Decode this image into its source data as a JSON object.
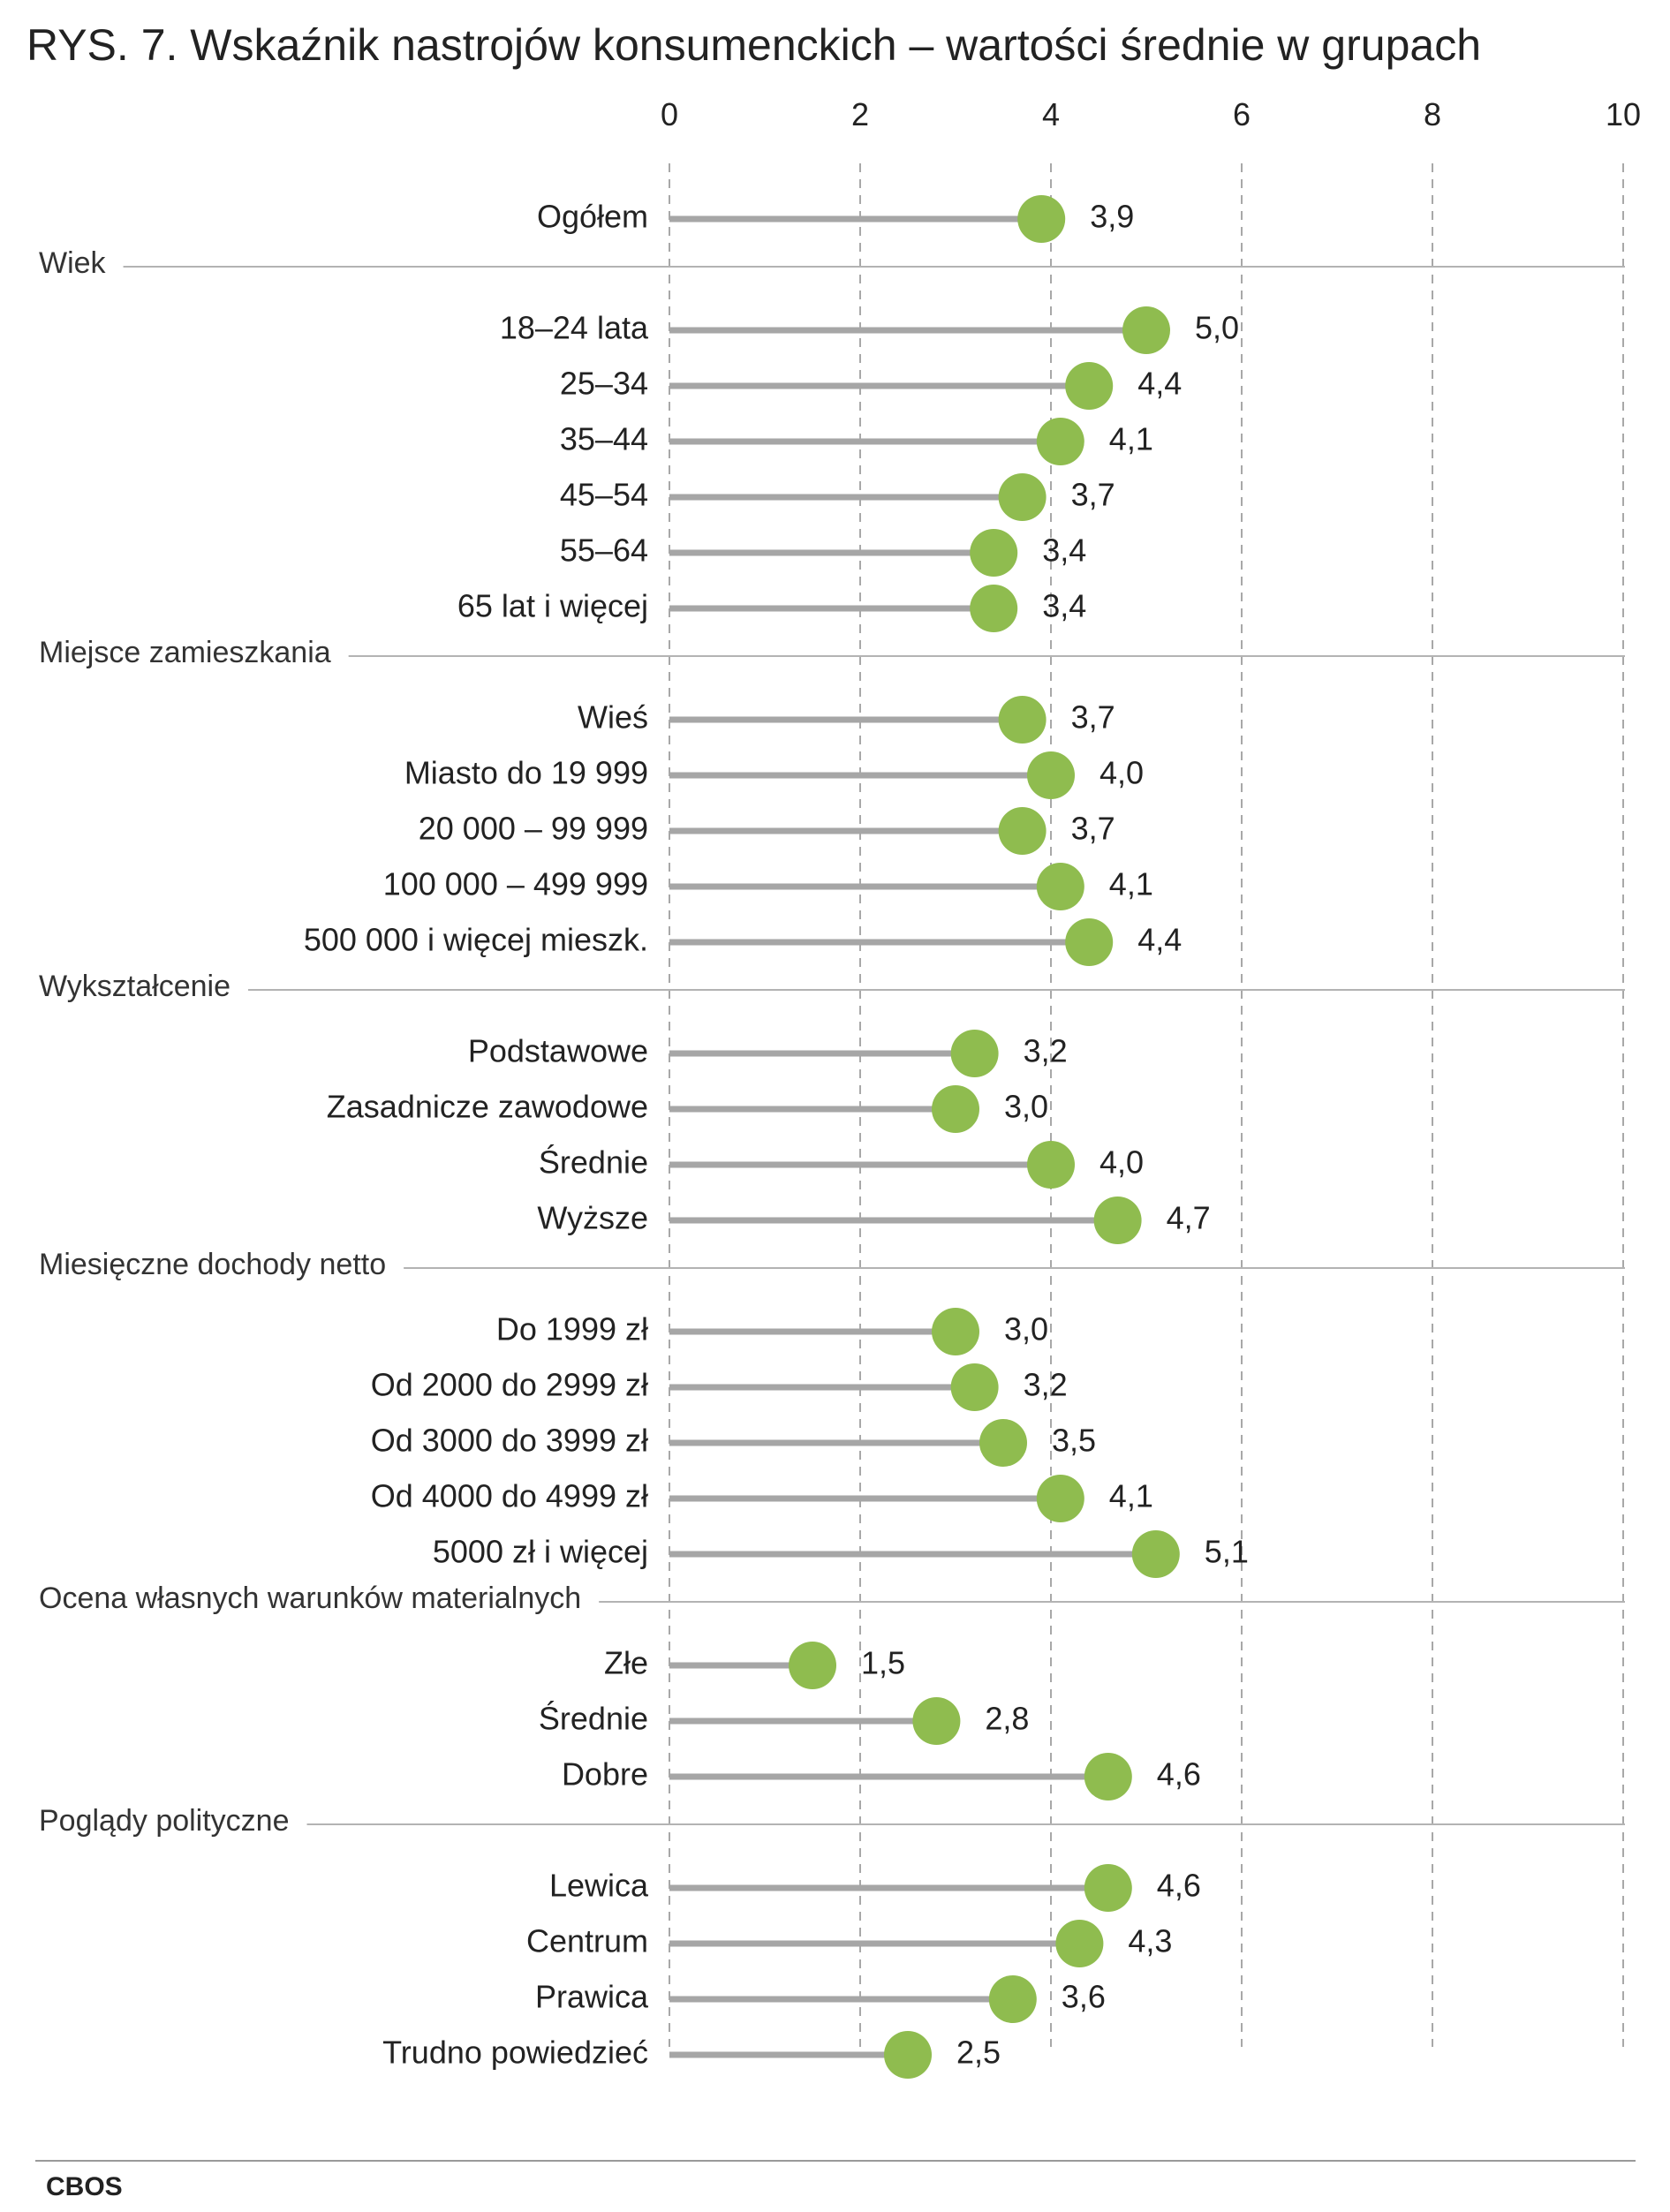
{
  "title": "RYS. 7. Wskaźnik nastrojów konsumenckich – wartości średnie w grupach",
  "source": "CBOS",
  "colors": {
    "marker": "#8fbc4f",
    "stem": "#a6a6a6",
    "grid": "#a8a8a8",
    "separator": "#b3b3b3"
  },
  "chart_data": {
    "type": "lollipop",
    "title": "RYS. 7. Wskaźnik nastrojów konsumenckich – wartości średnie w grupach",
    "xlim": [
      0,
      10
    ],
    "x_ticks": [
      "0",
      "2",
      "4",
      "6",
      "8",
      "10"
    ],
    "grid": "dashed vertical",
    "rows": [
      {
        "kind": "item",
        "label": "Ogółem",
        "value": 3.9,
        "display": "3,9"
      },
      {
        "kind": "group",
        "label": "Wiek"
      },
      {
        "kind": "item",
        "label": "18–24 lata",
        "value": 5.0,
        "display": "5,0"
      },
      {
        "kind": "item",
        "label": "25–34",
        "value": 4.4,
        "display": "4,4"
      },
      {
        "kind": "item",
        "label": "35–44",
        "value": 4.1,
        "display": "4,1"
      },
      {
        "kind": "item",
        "label": "45–54",
        "value": 3.7,
        "display": "3,7"
      },
      {
        "kind": "item",
        "label": "55–64",
        "value": 3.4,
        "display": "3,4"
      },
      {
        "kind": "item",
        "label": "65 lat i więcej",
        "value": 3.4,
        "display": "3,4"
      },
      {
        "kind": "group",
        "label": "Miejsce zamieszkania"
      },
      {
        "kind": "item",
        "label": "Wieś",
        "value": 3.7,
        "display": "3,7"
      },
      {
        "kind": "item",
        "label": "Miasto do 19 999",
        "value": 4.0,
        "display": "4,0"
      },
      {
        "kind": "item",
        "label": "20 000 – 99 999",
        "value": 3.7,
        "display": "3,7"
      },
      {
        "kind": "item",
        "label": "100 000 – 499 999",
        "value": 4.1,
        "display": "4,1"
      },
      {
        "kind": "item",
        "label": "500 000 i więcej mieszk.",
        "value": 4.4,
        "display": "4,4"
      },
      {
        "kind": "group",
        "label": "Wykształcenie"
      },
      {
        "kind": "item",
        "label": "Podstawowe",
        "value": 3.2,
        "display": "3,2"
      },
      {
        "kind": "item",
        "label": "Zasadnicze zawodowe",
        "value": 3.0,
        "display": "3,0"
      },
      {
        "kind": "item",
        "label": "Średnie",
        "value": 4.0,
        "display": "4,0"
      },
      {
        "kind": "item",
        "label": "Wyższe",
        "value": 4.7,
        "display": "4,7"
      },
      {
        "kind": "group",
        "label": "Miesięczne dochody netto"
      },
      {
        "kind": "item",
        "label": "Do 1999 zł",
        "value": 3.0,
        "display": "3,0"
      },
      {
        "kind": "item",
        "label": "Od 2000 do 2999 zł",
        "value": 3.2,
        "display": "3,2"
      },
      {
        "kind": "item",
        "label": "Od 3000 do 3999 zł",
        "value": 3.5,
        "display": "3,5"
      },
      {
        "kind": "item",
        "label": "Od 4000 do 4999 zł",
        "value": 4.1,
        "display": "4,1"
      },
      {
        "kind": "item",
        "label": "5000 zł i więcej",
        "value": 5.1,
        "display": "5,1"
      },
      {
        "kind": "group",
        "label": "Ocena własnych warunków materialnych"
      },
      {
        "kind": "item",
        "label": "Złe",
        "value": 1.5,
        "display": "1,5"
      },
      {
        "kind": "item",
        "label": "Średnie",
        "value": 2.8,
        "display": "2,8"
      },
      {
        "kind": "item",
        "label": "Dobre",
        "value": 4.6,
        "display": "4,6"
      },
      {
        "kind": "group",
        "label": "Poglądy polityczne"
      },
      {
        "kind": "item",
        "label": "Lewica",
        "value": 4.6,
        "display": "4,6"
      },
      {
        "kind": "item",
        "label": "Centrum",
        "value": 4.3,
        "display": "4,3"
      },
      {
        "kind": "item",
        "label": "Prawica",
        "value": 3.6,
        "display": "3,6"
      },
      {
        "kind": "item",
        "label": "Trudno powiedzieć",
        "value": 2.5,
        "display": "2,5"
      }
    ]
  }
}
